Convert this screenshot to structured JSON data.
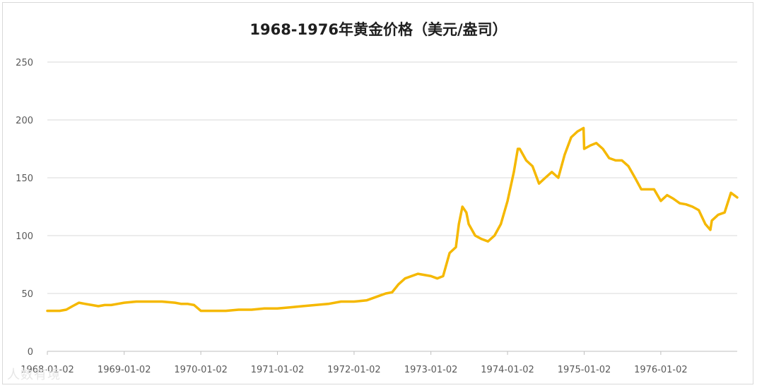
{
  "chart_data": {
    "type": "line",
    "title": "1968-1976年黄金价格（美元/盎司）",
    "xlabel": "",
    "ylabel": "",
    "ylim": [
      0,
      250
    ],
    "yticks": [
      0,
      50,
      100,
      150,
      200,
      250
    ],
    "xlim": [
      "1968-01-02",
      "1976-12-31"
    ],
    "xtick_labels": [
      "1968-01-02",
      "1969-01-02",
      "1970-01-02",
      "1971-01-02",
      "1972-01-02",
      "1973-01-02",
      "1974-01-02",
      "1975-01-02",
      "1976-01-02"
    ],
    "grid": "horizontal",
    "legend": "none",
    "series": [
      {
        "color": "#f5b800",
        "x": [
          "1968-01-02",
          "1968-03-01",
          "1968-04-01",
          "1968-05-01",
          "1968-06-01",
          "1968-07-01",
          "1968-08-01",
          "1968-09-01",
          "1968-10-01",
          "1968-11-01",
          "1968-12-01",
          "1969-01-02",
          "1969-03-01",
          "1969-05-01",
          "1969-07-01",
          "1969-09-01",
          "1969-10-01",
          "1969-11-01",
          "1969-12-01",
          "1970-01-02",
          "1970-03-01",
          "1970-05-01",
          "1970-07-01",
          "1970-09-01",
          "1970-11-01",
          "1971-01-02",
          "1971-03-01",
          "1971-05-01",
          "1971-07-01",
          "1971-09-01",
          "1971-11-01",
          "1972-01-02",
          "1972-03-01",
          "1972-05-01",
          "1972-06-01",
          "1972-07-01",
          "1972-08-01",
          "1972-09-01",
          "1972-11-01",
          "1973-01-02",
          "1973-02-01",
          "1973-03-01",
          "1973-04-01",
          "1973-05-01",
          "1973-05-15",
          "1973-06-01",
          "1973-06-20",
          "1973-07-01",
          "1973-08-01",
          "1973-09-01",
          "1973-10-01",
          "1973-11-01",
          "1973-12-01",
          "1974-01-02",
          "1974-02-01",
          "1974-02-20",
          "1974-03-01",
          "1974-04-01",
          "1974-05-01",
          "1974-06-01",
          "1974-07-01",
          "1974-08-01",
          "1974-09-01",
          "1974-10-01",
          "1974-11-01",
          "1974-12-01",
          "1974-12-30",
          "1975-01-02",
          "1975-02-01",
          "1975-03-01",
          "1975-04-01",
          "1975-05-01",
          "1975-06-01",
          "1975-07-01",
          "1975-08-01",
          "1975-09-01",
          "1975-10-01",
          "1975-11-01",
          "1975-12-01",
          "1976-01-02",
          "1976-02-01",
          "1976-03-01",
          "1976-04-01",
          "1976-05-01",
          "1976-06-01",
          "1976-07-01",
          "1976-08-01",
          "1976-08-25",
          "1976-09-01",
          "1976-10-01",
          "1976-11-01",
          "1976-12-01",
          "1976-12-31"
        ],
        "y": [
          35,
          35,
          36,
          39,
          42,
          41,
          40,
          39,
          40,
          40,
          41,
          42,
          43,
          43,
          43,
          42,
          41,
          41,
          40,
          35,
          35,
          35,
          36,
          36,
          37,
          37,
          38,
          39,
          40,
          41,
          43,
          43,
          44,
          48,
          50,
          51,
          58,
          63,
          67,
          65,
          63,
          65,
          85,
          90,
          110,
          125,
          120,
          110,
          100,
          97,
          95,
          100,
          110,
          130,
          155,
          175,
          175,
          165,
          160,
          145,
          150,
          155,
          150,
          170,
          185,
          190,
          193,
          175,
          178,
          180,
          175,
          167,
          165,
          165,
          160,
          150,
          140,
          140,
          140,
          130,
          135,
          132,
          128,
          127,
          125,
          122,
          110,
          105,
          113,
          118,
          120,
          137,
          133
        ]
      }
    ]
  },
  "watermark": "人数有境"
}
